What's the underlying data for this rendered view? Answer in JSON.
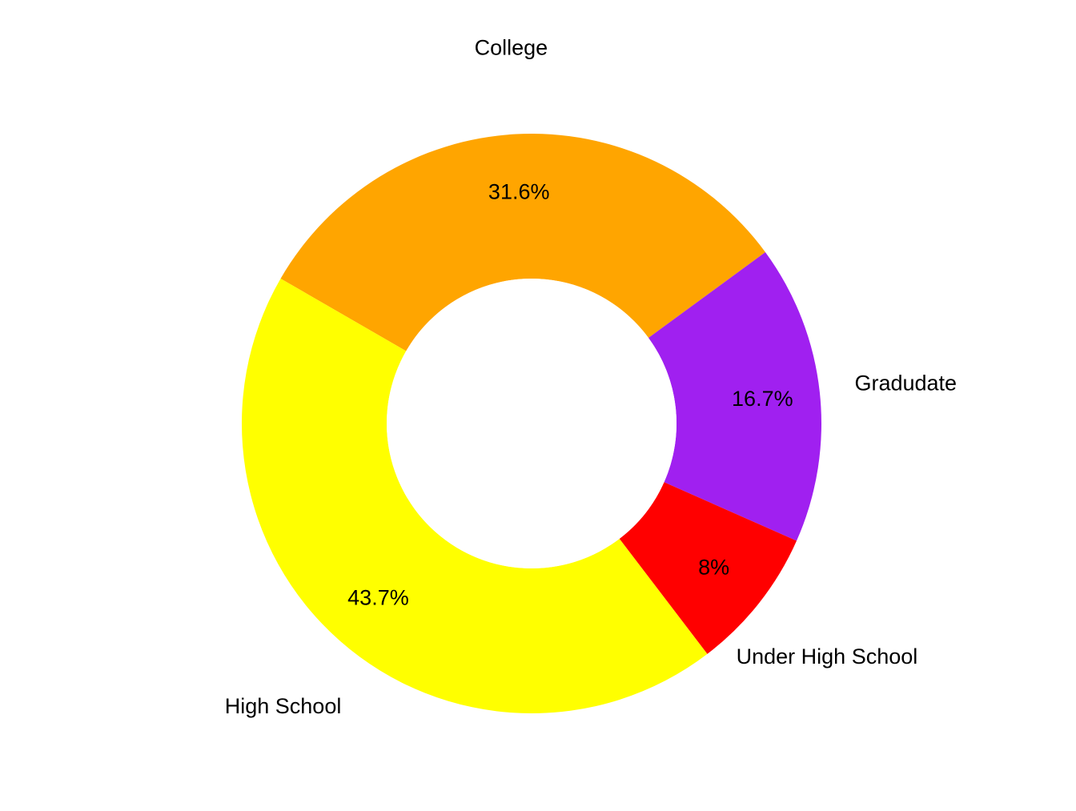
{
  "chart_data": {
    "type": "pie",
    "variant": "donut",
    "title": "",
    "slices": [
      {
        "label": "College",
        "value": 31.6,
        "value_label": "31.6%",
        "color": "#FFA500"
      },
      {
        "label": "Gradudate",
        "value": 16.7,
        "value_label": "16.7%",
        "color": "#A020F0"
      },
      {
        "label": "Under High School",
        "value": 8.0,
        "value_label": "8%",
        "color": "#FF0000"
      },
      {
        "label": "High School",
        "value": 43.7,
        "value_label": "43.7%",
        "color": "#FFFF00"
      }
    ],
    "start_angle_deg": 300,
    "direction": "clockwise",
    "legend": "none",
    "labels": "outside category names, inside percentages"
  }
}
